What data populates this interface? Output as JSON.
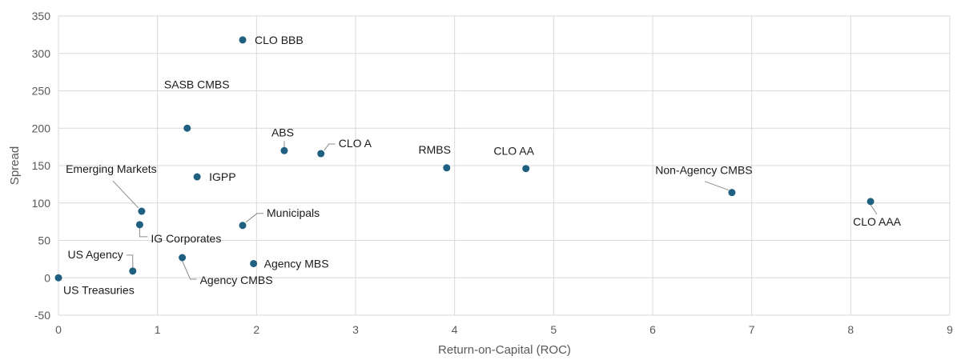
{
  "chart_data": {
    "type": "scatter",
    "xlabel": "Return-on-Capital (ROC)",
    "ylabel": "Spread",
    "xlim": [
      0,
      9
    ],
    "ylim": [
      -50,
      350
    ],
    "xticks": [
      0,
      1,
      2,
      3,
      4,
      5,
      6,
      7,
      8,
      9
    ],
    "yticks": [
      -50,
      0,
      50,
      100,
      150,
      200,
      250,
      300,
      350
    ],
    "grid": true,
    "color": "#1f5f7f",
    "points": [
      {
        "label": "US Treasuries",
        "x": 0.0,
        "y": 0
      },
      {
        "label": "US Agency",
        "x": 0.75,
        "y": 9
      },
      {
        "label": "IG Corporates",
        "x": 0.82,
        "y": 71
      },
      {
        "label": "Emerging Markets",
        "x": 0.84,
        "y": 89
      },
      {
        "label": "Agency CMBS",
        "x": 1.25,
        "y": 27
      },
      {
        "label": "SASB CMBS",
        "x": 1.3,
        "y": 200
      },
      {
        "label": "IGPP",
        "x": 1.4,
        "y": 135
      },
      {
        "label": "CLO BBB",
        "x": 1.86,
        "y": 318
      },
      {
        "label": "Municipals",
        "x": 1.86,
        "y": 70
      },
      {
        "label": "Agency MBS",
        "x": 1.97,
        "y": 19
      },
      {
        "label": "ABS",
        "x": 2.28,
        "y": 170
      },
      {
        "label": "CLO A",
        "x": 2.65,
        "y": 166
      },
      {
        "label": "RMBS",
        "x": 3.92,
        "y": 147
      },
      {
        "label": "CLO AA",
        "x": 4.72,
        "y": 146
      },
      {
        "label": "Non-Agency CMBS",
        "x": 6.8,
        "y": 114
      },
      {
        "label": "CLO AAA",
        "x": 8.2,
        "y": 102
      }
    ]
  }
}
